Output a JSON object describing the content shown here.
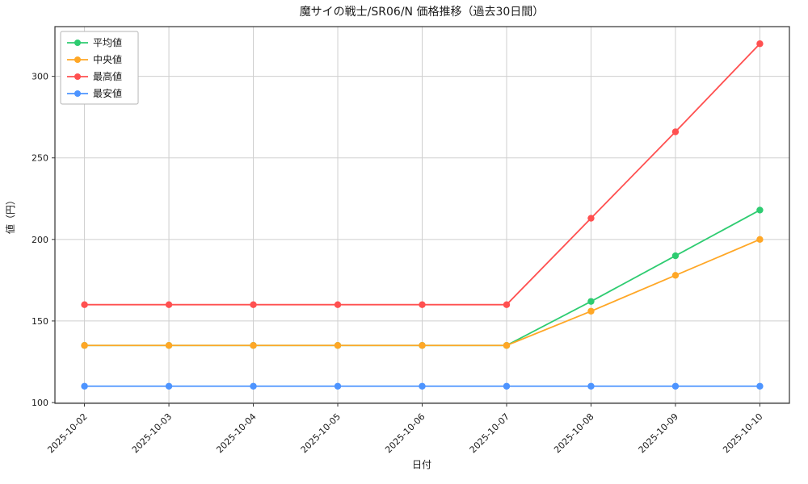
{
  "chart_data": {
    "type": "line",
    "title": "魔サイの戦士/SR06/N 価格推移（過去30日間）",
    "xlabel": "日付",
    "ylabel": "値（円）",
    "x": [
      "2025-10-02",
      "2025-10-03",
      "2025-10-04",
      "2025-10-05",
      "2025-10-06",
      "2025-10-07",
      "2025-10-08",
      "2025-10-09",
      "2025-10-10"
    ],
    "yticks": [
      100,
      150,
      200,
      250,
      300
    ],
    "ylim": [
      99.5,
      330.5
    ],
    "grid": true,
    "legend_position": "upper left",
    "series": [
      {
        "name": "平均値",
        "color": "#2ecc71",
        "values": [
          135,
          135,
          135,
          135,
          135,
          135,
          162,
          190,
          218
        ]
      },
      {
        "name": "中央値",
        "color": "#ffa726",
        "values": [
          135,
          135,
          135,
          135,
          135,
          135,
          156,
          178,
          200
        ]
      },
      {
        "name": "最高値",
        "color": "#ff5050",
        "values": [
          160,
          160,
          160,
          160,
          160,
          160,
          213,
          266,
          320
        ]
      },
      {
        "name": "最安値",
        "color": "#4d94ff",
        "values": [
          110,
          110,
          110,
          110,
          110,
          110,
          110,
          110,
          110
        ]
      }
    ],
    "colors": {
      "background": "#ffffff",
      "grid": "#cfcfcf",
      "axis": "#333333",
      "text": "#1a1a1a"
    }
  }
}
